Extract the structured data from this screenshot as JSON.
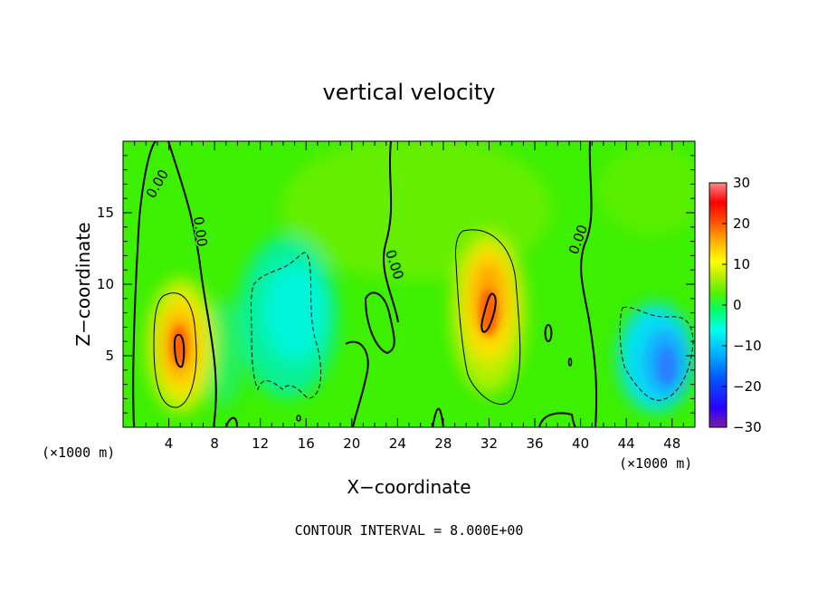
{
  "chart_data": {
    "type": "heatmap",
    "title": "vertical velocity",
    "xlabel": "X−coordinate",
    "ylabel": "Z−coordinate",
    "x_unit": "(×1000 m)",
    "y_unit": "(×1000 m)",
    "xlim": [
      0,
      50
    ],
    "ylim": [
      0,
      20
    ],
    "x_ticks": [
      4,
      8,
      12,
      16,
      20,
      24,
      28,
      32,
      36,
      40,
      44,
      48
    ],
    "y_ticks": [
      5,
      10,
      15
    ],
    "colorbar": {
      "min": -30,
      "max": 30,
      "ticks": [
        30,
        20,
        10,
        0,
        -10,
        -20,
        -30
      ],
      "tick_labels": [
        "30",
        "20",
        "10",
        "0",
        "−10",
        "−20",
        "−30"
      ],
      "colors": [
        "#7b1fa2",
        "#2a00ff",
        "#0057ff",
        "#00b0ff",
        "#00ffee",
        "#00ff66",
        "#55f000",
        "#c8f000",
        "#ffff00",
        "#ffb000",
        "#ff5000",
        "#ff0000",
        "#ff8888"
      ]
    },
    "contour_interval_text": "CONTOUR INTERVAL = 8.000E+00",
    "contour_labels": [
      "0.00",
      "0.00",
      "0.00",
      "0.00"
    ],
    "features": [
      {
        "name": "updraft",
        "x": 5,
        "z": 5.8,
        "peak": 20
      },
      {
        "name": "updraft",
        "x": 31.5,
        "z": 8.2,
        "peak": 20
      },
      {
        "name": "downdraft",
        "x": 15,
        "z": 7,
        "peak": -7
      },
      {
        "name": "downdraft",
        "x": 47,
        "z": 4.5,
        "peak": -14
      },
      {
        "name": "weak updraft",
        "x": 22,
        "z": 15,
        "peak": 4
      },
      {
        "name": "weak updraft",
        "x": 44,
        "z": 17,
        "peak": 3
      }
    ]
  }
}
